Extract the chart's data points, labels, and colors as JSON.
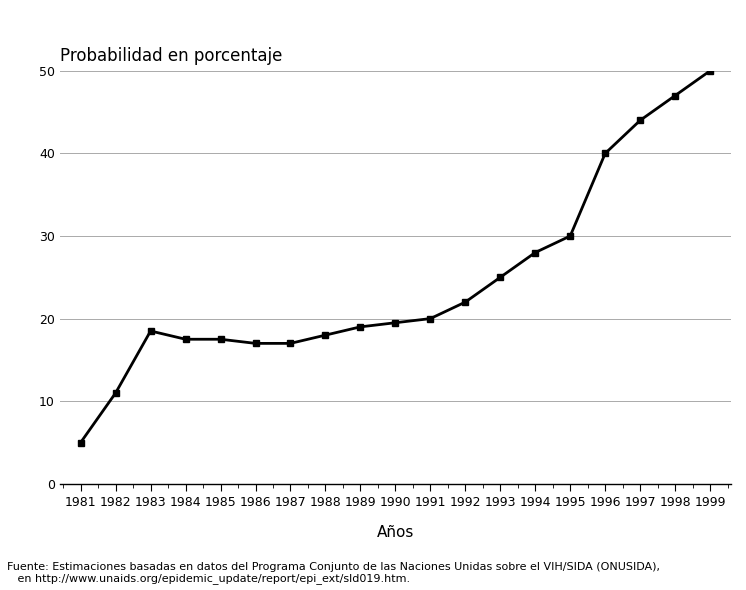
{
  "years": [
    1981,
    1982,
    1983,
    1984,
    1985,
    1986,
    1987,
    1988,
    1989,
    1990,
    1991,
    1992,
    1993,
    1994,
    1995,
    1996,
    1997,
    1998,
    1999
  ],
  "values": [
    5,
    11,
    18.5,
    17.5,
    17.5,
    17,
    17,
    18,
    19,
    19.5,
    20,
    22,
    25,
    28,
    30,
    40,
    44,
    47,
    50
  ],
  "ylabel": "Probabilidad en porcentaje",
  "xlabel": "Años",
  "ylim": [
    0,
    50
  ],
  "yticks": [
    0,
    10,
    20,
    30,
    40,
    50
  ],
  "xticks": [
    1981,
    1982,
    1983,
    1984,
    1985,
    1986,
    1987,
    1988,
    1989,
    1990,
    1991,
    1992,
    1993,
    1994,
    1995,
    1996,
    1997,
    1998,
    1999
  ],
  "line_color": "#000000",
  "marker": "s",
  "markersize": 5,
  "linewidth": 2,
  "footnote_line1": "Fuente: Estimaciones basadas en datos del Programa Conjunto de las Naciones Unidas sobre el VIH/SIDA (ONUSIDA),",
  "footnote_line2": "   en http://www.unaids.org/epidemic_update/report/epi_ext/sld019.htm.",
  "background_color": "#ffffff",
  "grid_color": "#aaaaaa",
  "ylabel_fontsize": 12,
  "xlabel_fontsize": 11,
  "tick_fontsize": 9,
  "footnote_fontsize": 8
}
